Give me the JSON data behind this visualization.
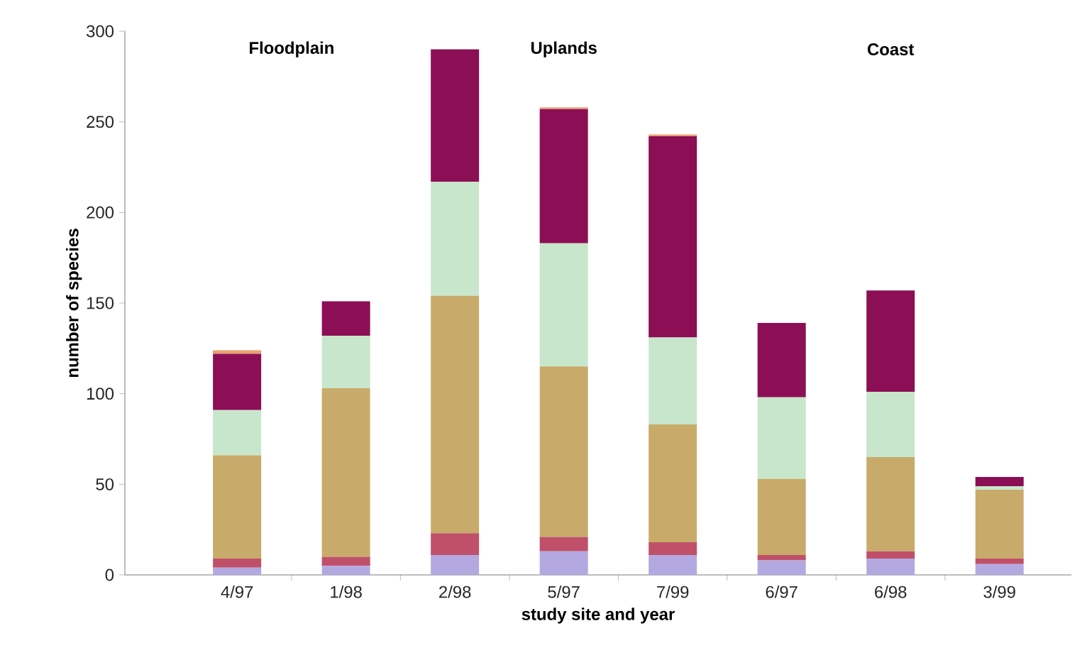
{
  "chart_data": {
    "type": "bar",
    "stacked": true,
    "xlabel": "study site and year",
    "ylabel": "number of species",
    "annotations": [
      "Floodplain",
      "Uplands",
      "Coast"
    ],
    "categories": [
      "4/97",
      "1/98",
      "2/98",
      "5/97",
      "7/99",
      "6/97",
      "6/98",
      "3/99"
    ],
    "series": [
      {
        "color": "#b3a9e0",
        "values": [
          4,
          5,
          11,
          13,
          11,
          8,
          9,
          6
        ]
      },
      {
        "color": "#c0506a",
        "values": [
          5,
          5,
          12,
          8,
          7,
          3,
          4,
          3
        ]
      },
      {
        "color": "#c8ab6a",
        "values": [
          57,
          93,
          131,
          94,
          65,
          42,
          52,
          38
        ]
      },
      {
        "color": "#c8e6cc",
        "values": [
          25,
          29,
          63,
          68,
          48,
          45,
          36,
          2
        ]
      },
      {
        "color": "#8c0f55",
        "values": [
          31,
          19,
          73,
          74,
          111,
          41,
          56,
          5
        ]
      },
      {
        "color": "#e8a070",
        "values": [
          2,
          0,
          0,
          1,
          1,
          0,
          0,
          0
        ]
      }
    ],
    "ylim": [
      0,
      300
    ],
    "yticks": [
      0,
      50,
      100,
      150,
      200,
      250,
      300
    ],
    "grid": false
  }
}
